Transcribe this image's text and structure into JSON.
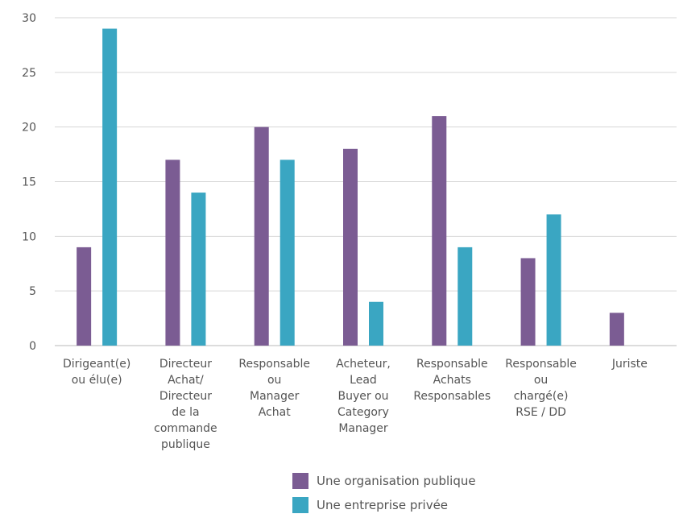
{
  "chart_data": {
    "type": "bar",
    "categories": [
      [
        "Dirigeant(e)",
        "ou élu(e)"
      ],
      [
        "Directeur",
        "Achat/",
        "Directeur",
        "de la",
        "commande",
        "publique"
      ],
      [
        "Responsable",
        "ou",
        "Manager",
        "Achat"
      ],
      [
        "Acheteur,",
        "Lead",
        "Buyer ou",
        "Category",
        "Manager"
      ],
      [
        "Responsable",
        "Achats",
        "Responsables"
      ],
      [
        "Responsable",
        "ou",
        "chargé(e)",
        "RSE / DD"
      ],
      [
        "Juriste"
      ]
    ],
    "series": [
      {
        "name": "Une organisation publique",
        "color": "#7b5c93",
        "values": [
          9,
          17,
          20,
          18,
          21,
          8,
          3
        ]
      },
      {
        "name": "Une entreprise privée",
        "color": "#3aa6c2",
        "values": [
          29,
          14,
          17,
          4,
          9,
          12,
          0
        ]
      }
    ],
    "ylim": [
      0,
      30
    ],
    "yticks": [
      0,
      5,
      10,
      15,
      20,
      25,
      30
    ],
    "grid": true,
    "legend_position": "bottom-center"
  }
}
